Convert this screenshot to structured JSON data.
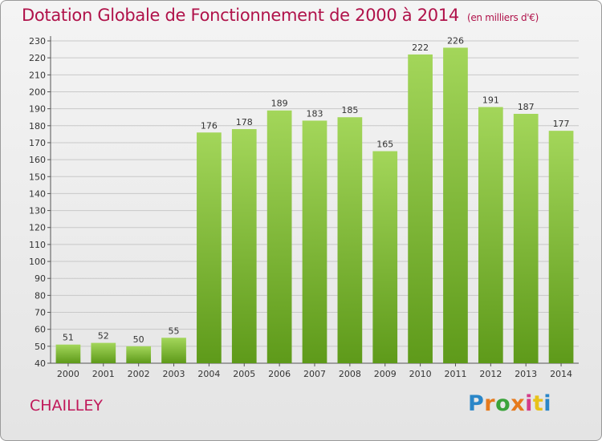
{
  "chart_data": {
    "type": "bar",
    "title": "Dotation Globale de Fonctionnement de 2000 à 2014",
    "subtitle": "(en milliers d'€)",
    "categories": [
      "2000",
      "2001",
      "2002",
      "2003",
      "2004",
      "2005",
      "2006",
      "2007",
      "2008",
      "2009",
      "2010",
      "2011",
      "2012",
      "2013",
      "2014"
    ],
    "values": [
      51,
      52,
      50,
      55,
      176,
      178,
      189,
      183,
      185,
      165,
      222,
      226,
      191,
      187,
      177
    ],
    "xlabel": "",
    "ylabel": "",
    "ylim": [
      40,
      230
    ],
    "ytick_step": 10,
    "grid": "horizontal",
    "legend": "none",
    "bar_color_light": "#a3d65a",
    "bar_color_dark": "#5e9a1a"
  },
  "footer": {
    "commune": "CHAILLEY"
  },
  "logo": {
    "p": "P",
    "r": "r",
    "o": "o",
    "x": "x",
    "i1": "i",
    "t": "t",
    "i2": "i"
  }
}
